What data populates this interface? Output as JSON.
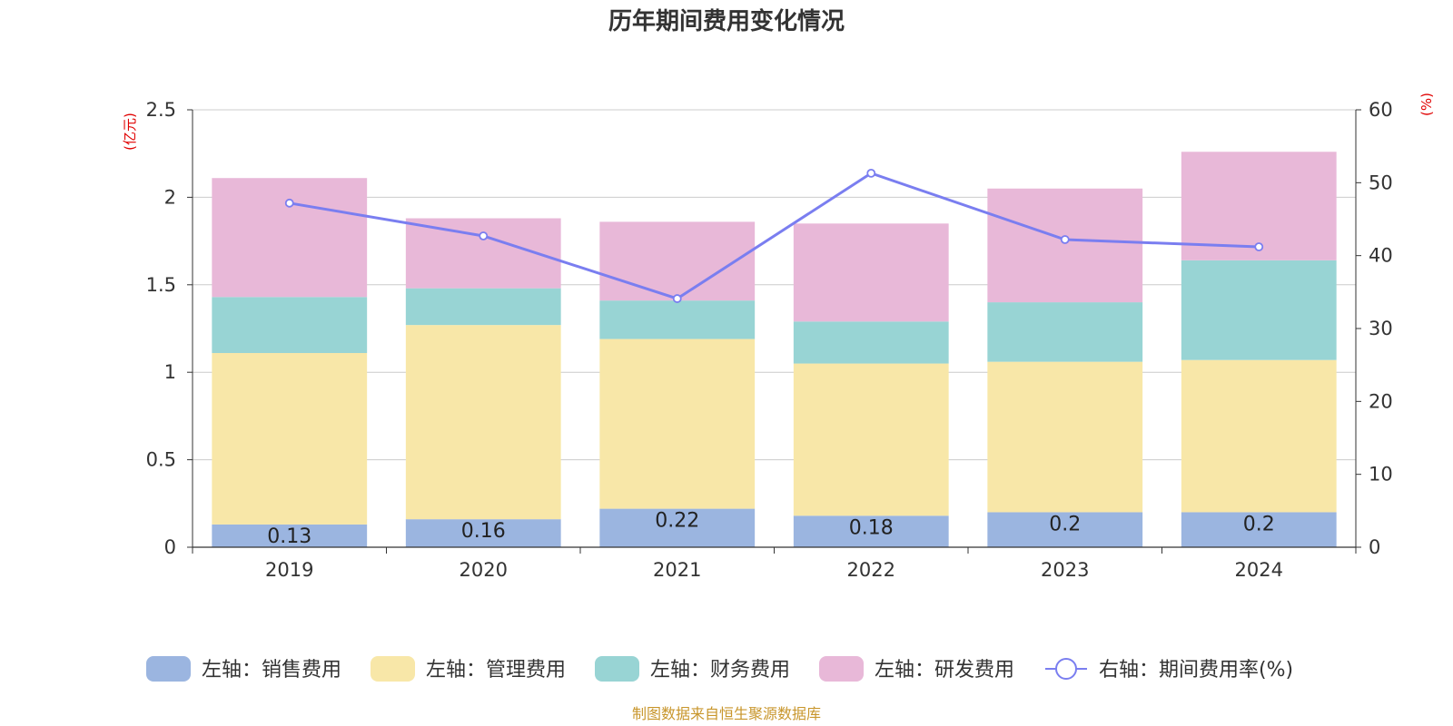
{
  "chart_data": {
    "type": "bar",
    "title": "历年期间费用变化情况",
    "categories": [
      "2019",
      "2020",
      "2021",
      "2022",
      "2023",
      "2024"
    ],
    "left_axis": {
      "unit": "(亿元)",
      "ylim": [
        0,
        2.5
      ],
      "ticks": [
        "0",
        "0.5",
        "1",
        "1.5",
        "2",
        "2.5"
      ],
      "tick_values": [
        0,
        0.5,
        1,
        1.5,
        2,
        2.5
      ]
    },
    "right_axis": {
      "unit": "(%)",
      "ylim": [
        0,
        60
      ],
      "ticks": [
        "0",
        "10",
        "20",
        "30",
        "40",
        "50",
        "60"
      ],
      "tick_values": [
        0,
        10,
        20,
        30,
        40,
        50,
        60
      ]
    },
    "series": [
      {
        "name": "左轴：销售费用",
        "type": "bar",
        "axis": "left",
        "color": "#9bb5e0",
        "values": [
          0.13,
          0.16,
          0.22,
          0.18,
          0.2,
          0.2
        ],
        "labels": [
          "0.13",
          "0.16",
          "0.22",
          "0.18",
          "0.2",
          "0.2"
        ]
      },
      {
        "name": "左轴：管理费用",
        "type": "bar",
        "axis": "left",
        "color": "#f8e7a8",
        "values": [
          0.98,
          1.11,
          0.97,
          0.87,
          0.86,
          0.87
        ]
      },
      {
        "name": "左轴：财务费用",
        "type": "bar",
        "axis": "left",
        "color": "#98d4d4",
        "values": [
          0.32,
          0.21,
          0.22,
          0.24,
          0.34,
          0.57
        ]
      },
      {
        "name": "左轴：研发费用",
        "type": "bar",
        "axis": "left",
        "color": "#e8b8d8",
        "values": [
          0.68,
          0.4,
          0.45,
          0.56,
          0.65,
          0.62
        ]
      },
      {
        "name": "右轴：期间费用率(%)",
        "type": "line",
        "axis": "right",
        "color": "#7a7ef0",
        "values": [
          47.2,
          42.7,
          34.1,
          51.3,
          42.2,
          41.2
        ]
      }
    ],
    "grid": true,
    "legend_position": "bottom",
    "stacked": true
  },
  "source_note": "制图数据来自恒生聚源数据库"
}
